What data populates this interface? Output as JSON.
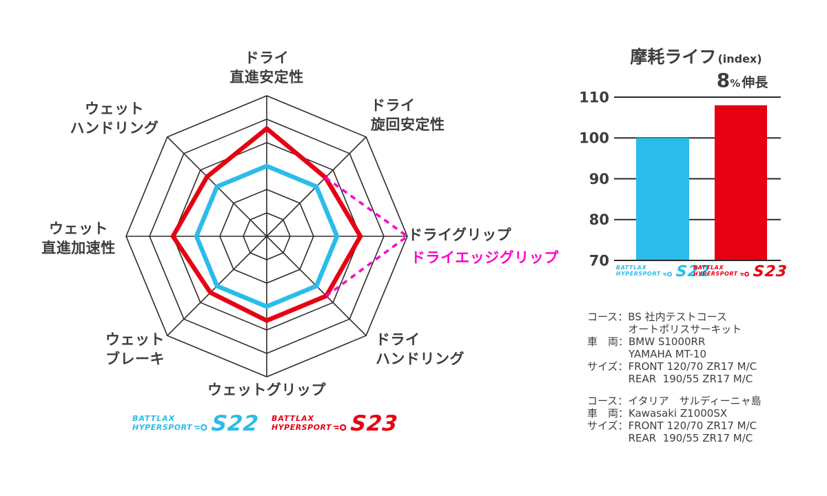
{
  "colors": {
    "s22_cyan": "#2bbce9",
    "s23_red": "#e60012",
    "edge_magenta": "#ff00cc",
    "grid_line": "#2e2a28",
    "text_dark": "#3d3d3d"
  },
  "chart_data": [
    {
      "type": "radar",
      "rings": 6,
      "max": 6,
      "categories": [
        "ドライ直進安定性",
        "ドライ旋回安定性",
        "ドライグリップ",
        "ドライハンドリング",
        "ウェットグリップ",
        "ウェットブレーキ",
        "ウェット直進加速性",
        "ウェットハンドリング"
      ],
      "series": [
        {
          "name": "BATTLAX HYPERSPORT S22",
          "color": "#2bbce9",
          "style": "solid",
          "values": [
            3,
            3,
            3,
            3,
            3,
            3,
            3,
            3
          ]
        },
        {
          "name": "BATTLAX HYPERSPORT S23",
          "color": "#e60012",
          "style": "solid",
          "values": [
            4.6,
            3.55,
            4,
            3.6,
            3.6,
            3.4,
            4,
            3.6
          ]
        }
      ],
      "overlay": {
        "name": "ドライエッジグリップ",
        "color": "#ff00cc",
        "style": "dashed",
        "points": [
          {
            "axis": 1,
            "value": 3.55
          },
          {
            "axis": 2,
            "value": 6
          },
          {
            "axis": 3,
            "value": 3.6
          }
        ]
      },
      "legend_position": "below"
    },
    {
      "type": "bar",
      "title": "摩耗ライフ",
      "title_suffix": "(index)",
      "annotation": "8%伸長",
      "categories": [
        "BATTLAX HYPERSPORT S22",
        "BATTLAX HYPERSPORT S23"
      ],
      "values": [
        100,
        108
      ],
      "colors": [
        "#2bbce9",
        "#e60012"
      ],
      "ylim": [
        70,
        110
      ],
      "yticks": [
        110,
        100,
        90,
        80,
        70
      ],
      "grid": true,
      "legend_position": "below"
    }
  ],
  "radar_labels": {
    "n": {
      "l1": "ドライ",
      "l2": "直進安定性"
    },
    "ne": {
      "l1": "ドライ",
      "l2": "旋回安定性"
    },
    "e": {
      "l1": "ドライグリップ"
    },
    "edge": {
      "l1": "ドライエッジグリップ"
    },
    "se": {
      "l1": "ドライ",
      "l2": "ハンドリング"
    },
    "s": {
      "l1": "ウェットグリップ"
    },
    "sw": {
      "l1": "ウェット",
      "l2": "ブレーキ"
    },
    "w": {
      "l1": "ウェット",
      "l2": "直進加速性"
    },
    "nw": {
      "l1": "ウェット",
      "l2": "ハンドリング"
    }
  },
  "bar_text": {
    "title": "摩耗ライフ",
    "title_suffix": "(index)",
    "anno_value": "8",
    "anno_percent": "%",
    "anno_label": "伸長"
  },
  "logos": {
    "battlax": "BATTLAX",
    "hypersport": "HYPERSPORT",
    "s22": "S22",
    "s23": "S23"
  },
  "notes": [
    {
      "rows": [
        {
          "label": "コース：",
          "lines": [
            "BS 社内テストコース",
            "オートポリスサーキット"
          ]
        },
        {
          "label": "車　両：",
          "lines": [
            "BMW S1000RR",
            "YAMAHA MT-10"
          ]
        },
        {
          "label": "サイズ：",
          "lines": [
            "FRONT 120/70 ZR17 M/C",
            "REAR  190/55 ZR17 M/C"
          ]
        }
      ]
    },
    {
      "rows": [
        {
          "label": "コース：",
          "lines": [
            "イタリア　サルディーニャ島"
          ]
        },
        {
          "label": "車　両：",
          "lines": [
            "Kawasaki Z1000SX"
          ]
        },
        {
          "label": "サイズ：",
          "lines": [
            "FRONT 120/70 ZR17 M/C",
            "REAR  190/55 ZR17 M/C"
          ]
        }
      ]
    }
  ]
}
